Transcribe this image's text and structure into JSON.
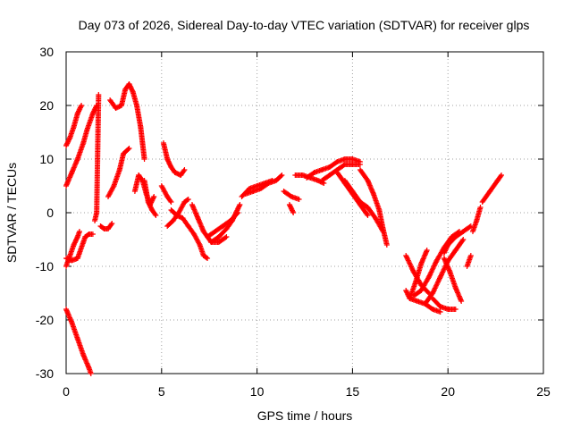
{
  "chart_data": {
    "type": "scatter",
    "title": "Day 073 of 2026, Sidereal Day-to-day VTEC variation (SDTVAR) for receiver glps",
    "xlabel": "GPS time / hours",
    "ylabel": "SDTVAR / TECUs",
    "xlim": [
      0,
      25
    ],
    "ylim": [
      -30,
      30
    ],
    "xticks": [
      0,
      5,
      10,
      15,
      20,
      25
    ],
    "yticks": [
      -30,
      -20,
      -10,
      0,
      10,
      20,
      30
    ],
    "grid": true,
    "marker": "+",
    "series_color": "#ff0000",
    "segments": [
      [
        [
          0.0,
          -18.0
        ],
        [
          0.3,
          -20.5
        ],
        [
          0.6,
          -23.5
        ],
        [
          0.9,
          -26.5
        ],
        [
          1.2,
          -29.0
        ],
        [
          1.3,
          -30.0
        ]
      ],
      [
        [
          0.0,
          12.5
        ],
        [
          0.2,
          14.0
        ],
        [
          0.4,
          16.0
        ],
        [
          0.6,
          18.5
        ],
        [
          0.8,
          20.0
        ]
      ],
      [
        [
          0.0,
          5.0
        ],
        [
          0.3,
          7.5
        ],
        [
          0.6,
          10.0
        ],
        [
          0.9,
          13.0
        ],
        [
          1.1,
          15.5
        ],
        [
          1.4,
          18.5
        ],
        [
          1.6,
          20.0
        ]
      ],
      [
        [
          0.0,
          -8.5
        ],
        [
          0.3,
          -8.9
        ],
        [
          0.6,
          -8.5
        ],
        [
          0.7,
          -7.5
        ],
        [
          0.9,
          -5.5
        ],
        [
          1.0,
          -4.5
        ],
        [
          1.2,
          -4.0
        ],
        [
          1.4,
          -4.0
        ]
      ],
      [
        [
          0.0,
          -10.0
        ],
        [
          0.2,
          -8.0
        ],
        [
          0.4,
          -6.0
        ],
        [
          0.6,
          -4.5
        ],
        [
          0.7,
          -3.5
        ]
      ],
      [
        [
          1.5,
          -1.5
        ],
        [
          1.6,
          0.0
        ],
        [
          1.7,
          22.0
        ]
      ],
      [
        [
          1.8,
          -2.5
        ],
        [
          2.0,
          -3.0
        ],
        [
          2.2,
          -3.0
        ],
        [
          2.4,
          -2.0
        ]
      ],
      [
        [
          2.2,
          3.0
        ],
        [
          2.5,
          5.0
        ],
        [
          2.8,
          8.0
        ],
        [
          3.0,
          11.0
        ],
        [
          3.3,
          12.0
        ]
      ],
      [
        [
          2.3,
          21.0
        ],
        [
          2.6,
          19.5
        ],
        [
          2.9,
          20.0
        ],
        [
          3.1,
          23.0
        ],
        [
          3.3,
          24.0
        ],
        [
          3.5,
          22.5
        ],
        [
          3.7,
          20.0
        ],
        [
          3.9,
          16.0
        ],
        [
          4.0,
          13.0
        ],
        [
          4.1,
          10.0
        ]
      ],
      [
        [
          3.6,
          4.0
        ],
        [
          3.8,
          7.0
        ],
        [
          4.0,
          6.0
        ],
        [
          4.2,
          3.5
        ],
        [
          4.4,
          1.5
        ],
        [
          4.6,
          3.0
        ]
      ],
      [
        [
          4.1,
          6.0
        ],
        [
          4.3,
          2.0
        ],
        [
          4.5,
          0.5
        ],
        [
          4.7,
          -0.5
        ]
      ],
      [
        [
          5.0,
          5.0
        ],
        [
          5.3,
          3.0
        ],
        [
          5.5,
          2.0
        ]
      ],
      [
        [
          5.1,
          13.0
        ],
        [
          5.3,
          10.0
        ],
        [
          5.5,
          8.5
        ],
        [
          5.7,
          7.5
        ],
        [
          6.0,
          7.0
        ],
        [
          6.2,
          8.0
        ]
      ],
      [
        [
          5.3,
          -2.5
        ],
        [
          5.6,
          -1.5
        ],
        [
          5.9,
          0.0
        ],
        [
          6.2,
          2.0
        ],
        [
          6.4,
          2.5
        ]
      ],
      [
        [
          5.5,
          0.5
        ],
        [
          5.8,
          -0.5
        ],
        [
          6.1,
          -1.0
        ],
        [
          6.4,
          -2.5
        ],
        [
          6.7,
          -4.0
        ],
        [
          7.0,
          -6.0
        ],
        [
          7.2,
          -8.0
        ],
        [
          7.4,
          -8.5
        ]
      ],
      [
        [
          6.6,
          1.5
        ],
        [
          6.9,
          -1.0
        ],
        [
          7.2,
          -3.5
        ],
        [
          7.6,
          -5.5
        ],
        [
          8.0,
          -5.5
        ],
        [
          8.4,
          -4.5
        ]
      ],
      [
        [
          7.4,
          -4.5
        ],
        [
          7.8,
          -3.5
        ],
        [
          8.2,
          -2.5
        ],
        [
          8.6,
          -1.5
        ],
        [
          9.0,
          0.0
        ]
      ],
      [
        [
          7.6,
          -5.5
        ],
        [
          8.0,
          -4.5
        ],
        [
          8.4,
          -3.0
        ],
        [
          8.7,
          -1.5
        ],
        [
          8.9,
          0.0
        ],
        [
          9.1,
          1.5
        ]
      ],
      [
        [
          9.2,
          3.0
        ],
        [
          9.6,
          4.5
        ],
        [
          10.0,
          5.0
        ],
        [
          10.4,
          5.5
        ],
        [
          10.8,
          6.0
        ]
      ],
      [
        [
          9.4,
          3.5
        ],
        [
          9.8,
          4.0
        ],
        [
          10.2,
          4.5
        ],
        [
          10.6,
          5.5
        ],
        [
          11.0,
          6.0
        ],
        [
          11.3,
          7.0
        ]
      ],
      [
        [
          11.4,
          4.0
        ],
        [
          11.8,
          3.0
        ],
        [
          12.2,
          2.5
        ]
      ],
      [
        [
          11.7,
          1.5
        ],
        [
          11.9,
          0.0
        ]
      ],
      [
        [
          12.0,
          7.0
        ],
        [
          12.4,
          7.0
        ],
        [
          12.8,
          6.5
        ],
        [
          13.2,
          6.0
        ],
        [
          13.5,
          5.5
        ]
      ],
      [
        [
          12.6,
          6.5
        ],
        [
          13.0,
          7.5
        ],
        [
          13.4,
          8.0
        ],
        [
          13.8,
          8.5
        ],
        [
          14.2,
          9.5
        ],
        [
          14.6,
          10.0
        ],
        [
          15.0,
          10.0
        ],
        [
          15.4,
          9.5
        ]
      ],
      [
        [
          13.4,
          6.0
        ],
        [
          13.8,
          7.0
        ],
        [
          14.2,
          8.0
        ],
        [
          14.6,
          9.0
        ],
        [
          15.0,
          9.0
        ],
        [
          15.4,
          9.0
        ]
      ],
      [
        [
          14.2,
          7.5
        ],
        [
          14.6,
          5.5
        ],
        [
          15.0,
          3.5
        ],
        [
          15.4,
          1.5
        ],
        [
          15.8,
          -0.5
        ]
      ],
      [
        [
          14.6,
          6.0
        ],
        [
          15.0,
          4.0
        ],
        [
          15.4,
          2.0
        ],
        [
          15.8,
          1.0
        ],
        [
          16.2,
          -1.0
        ],
        [
          16.6,
          -3.5
        ]
      ],
      [
        [
          15.4,
          8.0
        ],
        [
          15.8,
          6.0
        ],
        [
          16.1,
          3.5
        ],
        [
          16.4,
          0.5
        ],
        [
          16.6,
          -3.0
        ],
        [
          16.8,
          -6.0
        ]
      ],
      [
        [
          17.8,
          -14.5
        ],
        [
          18.0,
          -16.0
        ],
        [
          18.4,
          -16.5
        ],
        [
          18.8,
          -17.0
        ],
        [
          19.2,
          -18.0
        ],
        [
          19.6,
          -18.5
        ]
      ],
      [
        [
          17.8,
          -8.0
        ],
        [
          18.2,
          -11.0
        ],
        [
          18.6,
          -13.5
        ],
        [
          19.0,
          -15.0
        ]
      ],
      [
        [
          18.0,
          -16.0
        ],
        [
          18.3,
          -13.0
        ],
        [
          18.6,
          -9.5
        ],
        [
          18.9,
          -7.0
        ]
      ],
      [
        [
          18.2,
          -15.5
        ],
        [
          18.6,
          -14.5
        ],
        [
          19.0,
          -12.0
        ],
        [
          19.4,
          -9.0
        ],
        [
          19.8,
          -6.5
        ],
        [
          20.2,
          -4.5
        ],
        [
          20.6,
          -3.5
        ]
      ],
      [
        [
          18.8,
          -17.0
        ],
        [
          19.2,
          -15.0
        ],
        [
          19.6,
          -12.0
        ],
        [
          20.0,
          -9.0
        ],
        [
          20.4,
          -7.0
        ],
        [
          20.8,
          -5.0
        ]
      ],
      [
        [
          19.2,
          -16.0
        ],
        [
          19.6,
          -17.5
        ],
        [
          20.0,
          -18.0
        ],
        [
          20.4,
          -18.0
        ]
      ],
      [
        [
          19.8,
          -7.5
        ],
        [
          20.0,
          -6.0
        ],
        [
          20.4,
          -4.5
        ],
        [
          20.8,
          -3.5
        ],
        [
          21.2,
          -2.5
        ]
      ],
      [
        [
          19.8,
          -8.5
        ],
        [
          20.1,
          -11.0
        ],
        [
          20.4,
          -14.0
        ],
        [
          20.7,
          -16.5
        ]
      ],
      [
        [
          21.0,
          -10.0
        ],
        [
          21.2,
          -8.0
        ]
      ],
      [
        [
          21.3,
          -3.5
        ],
        [
          21.5,
          -1.5
        ],
        [
          21.7,
          1.0
        ]
      ],
      [
        [
          21.8,
          2.0
        ],
        [
          22.2,
          4.0
        ],
        [
          22.6,
          6.0
        ],
        [
          22.8,
          7.0
        ]
      ]
    ]
  }
}
